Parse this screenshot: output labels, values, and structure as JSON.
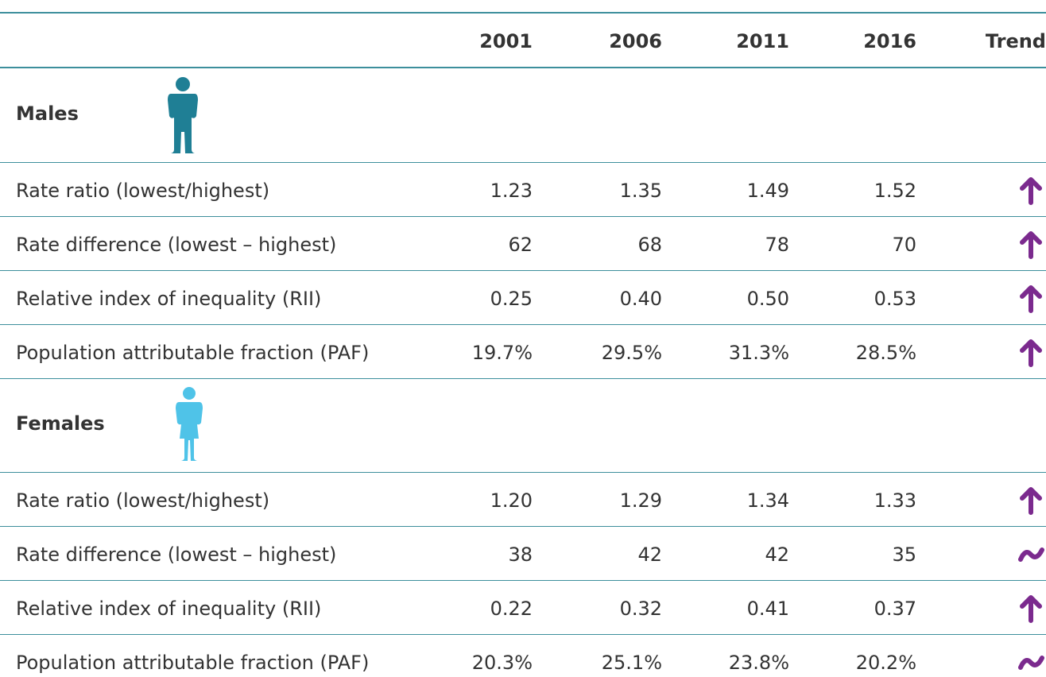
{
  "table": {
    "headers": [
      "2001",
      "2006",
      "2011",
      "2016",
      "Trend"
    ],
    "sections": [
      {
        "name": "Males",
        "rows": [
          {
            "label": "Rate ratio (lowest/highest)",
            "values": [
              "1.23",
              "1.35",
              "1.49",
              "1.52"
            ],
            "trend": "up"
          },
          {
            "label": "Rate difference (lowest – highest)",
            "values": [
              "62",
              "68",
              "78",
              "70"
            ],
            "trend": "up"
          },
          {
            "label": "Relative index of inequality (RII)",
            "values": [
              "0.25",
              "0.40",
              "0.50",
              "0.53"
            ],
            "trend": "up"
          },
          {
            "label": "Population attributable fraction (PAF)",
            "values": [
              "19.7%",
              "29.5%",
              "31.3%",
              "28.5%"
            ],
            "trend": "up"
          }
        ]
      },
      {
        "name": "Females",
        "rows": [
          {
            "label": "Rate ratio (lowest/highest)",
            "values": [
              "1.20",
              "1.29",
              "1.34",
              "1.33"
            ],
            "trend": "up"
          },
          {
            "label": "Rate difference (lowest – highest)",
            "values": [
              "38",
              "42",
              "42",
              "35"
            ],
            "trend": "flat"
          },
          {
            "label": "Relative index of inequality (RII)",
            "values": [
              "0.22",
              "0.32",
              "0.41",
              "0.37"
            ],
            "trend": "up"
          },
          {
            "label": "Population attributable fraction (PAF)",
            "values": [
              "20.3%",
              "25.1%",
              "23.8%",
              "20.2%"
            ],
            "trend": "flat"
          }
        ]
      }
    ]
  }
}
